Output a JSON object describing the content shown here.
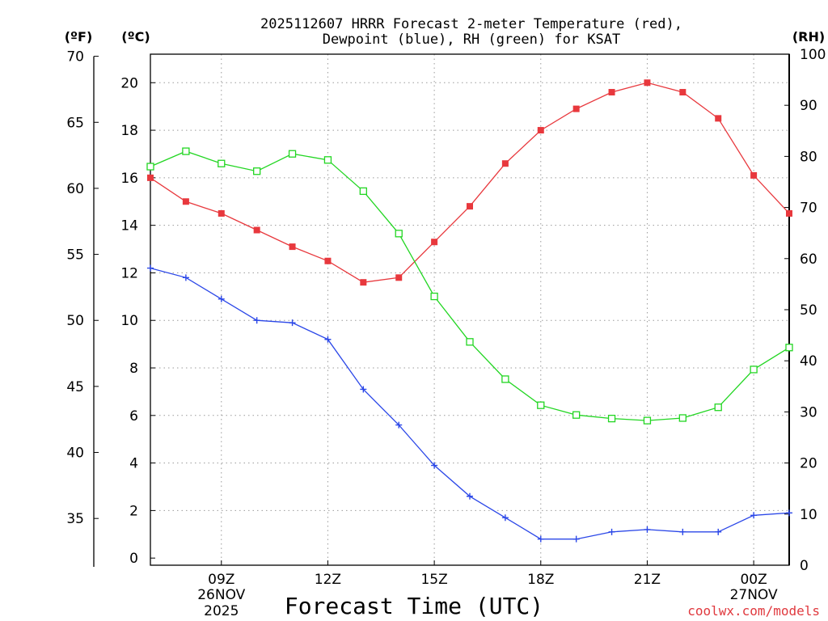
{
  "chart_data": {
    "type": "line",
    "title_line1": "2025112607 HRRR Forecast 2-meter Temperature (red),",
    "title_line2": "Dewpoint (blue), RH (green) for KSAT",
    "xlabel": "Forecast Time (UTC)",
    "credit": "coolwx.com/models",
    "units": {
      "fahrenheit": "(ºF)",
      "celsius": "(ºC)",
      "rh": "(RH)"
    },
    "x_hours": [
      7,
      8,
      9,
      10,
      11,
      12,
      13,
      14,
      15,
      16,
      17,
      18,
      19,
      20,
      21,
      22,
      23,
      24,
      25
    ],
    "xlim": [
      7,
      25
    ],
    "x_ticks": [
      {
        "hour": 9,
        "label": "09Z"
      },
      {
        "hour": 12,
        "label": "12Z"
      },
      {
        "hour": 15,
        "label": "15Z"
      },
      {
        "hour": 18,
        "label": "18Z"
      },
      {
        "hour": 21,
        "label": "21Z"
      },
      {
        "hour": 24,
        "label": "00Z"
      }
    ],
    "date_labels": [
      {
        "hour": 9,
        "line1": "26NOV",
        "line2": "2025"
      },
      {
        "hour": 24,
        "line1": "27NOV",
        "line2": ""
      }
    ],
    "celsius_axis": {
      "ylim": [
        -0.3,
        21.2
      ],
      "ticks": [
        "0",
        "2",
        "4",
        "6",
        "8",
        "10",
        "12",
        "14",
        "16",
        "18",
        "20"
      ]
    },
    "fahrenheit_axis": {
      "ylim": [
        31.5,
        70
      ],
      "ticks": [
        "35",
        "40",
        "45",
        "50",
        "55",
        "60",
        "65",
        "70"
      ]
    },
    "rh_axis": {
      "ylim": [
        0,
        100
      ],
      "ticks": [
        "0",
        "10",
        "20",
        "30",
        "40",
        "50",
        "60",
        "70",
        "80",
        "90",
        "100"
      ]
    },
    "series": [
      {
        "name": "Temperature",
        "color": "#e8383d",
        "axis": "celsius",
        "marker": "filled-square",
        "values": [
          16.0,
          15.0,
          14.5,
          13.8,
          13.1,
          12.5,
          11.6,
          11.8,
          13.3,
          14.8,
          16.6,
          18.0,
          18.9,
          19.6,
          20.0,
          19.6,
          18.5,
          16.1,
          14.5
        ]
      },
      {
        "name": "Dewpoint",
        "color": "#2b47e8",
        "axis": "celsius",
        "marker": "plus",
        "values": [
          12.2,
          11.8,
          10.9,
          10.0,
          9.9,
          9.2,
          7.1,
          5.6,
          3.9,
          2.6,
          1.7,
          0.8,
          0.8,
          1.1,
          1.2,
          1.1,
          1.1,
          1.8,
          1.9
        ]
      },
      {
        "name": "RH",
        "color": "#22d622",
        "axis": "rh",
        "marker": "open-square",
        "values": [
          78.0,
          81.0,
          78.6,
          77.1,
          80.5,
          79.3,
          73.2,
          64.9,
          52.6,
          43.7,
          36.4,
          31.3,
          29.4,
          28.7,
          28.3,
          28.8,
          30.9,
          38.3,
          42.6
        ]
      }
    ]
  }
}
